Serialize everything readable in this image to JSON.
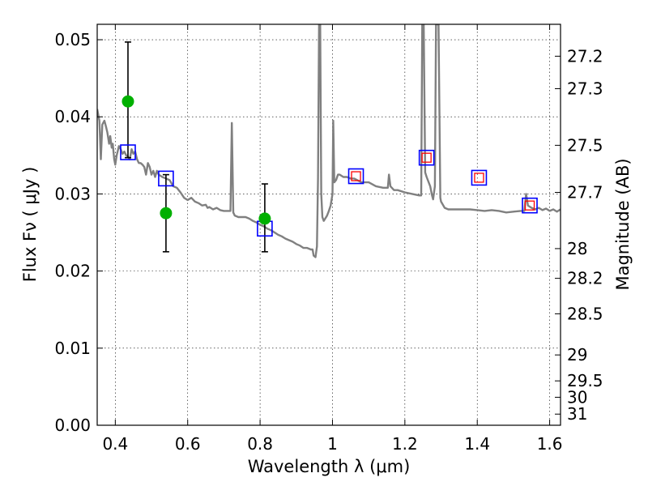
{
  "chart_data": {
    "type": "scatter",
    "xlabel": "Wavelength  λ (μm)",
    "ylabel": "Flux  Fν  ( μJy )",
    "y2label": "Magnitude (AB)",
    "xlim": [
      0.35,
      1.63
    ],
    "ylim": [
      0.0,
      0.052
    ],
    "x_ticks": [
      0.4,
      0.6,
      0.8,
      1.0,
      1.2,
      1.4,
      1.6
    ],
    "x_tick_labels": [
      "0.4",
      "0.6",
      "0.8",
      "1",
      "1.2",
      "1.4",
      "1.6"
    ],
    "y_ticks": [
      0.0,
      0.01,
      0.02,
      0.03,
      0.04,
      0.05
    ],
    "y_tick_labels": [
      "0.00",
      "0.01",
      "0.02",
      "0.03",
      "0.04",
      "0.05"
    ],
    "mag_ticks": [
      "27.2",
      "27.3",
      "27.5",
      "27.7",
      "28",
      "28.2",
      "28.5",
      "29",
      "29.5",
      "30",
      "31"
    ],
    "grid": true,
    "series": [
      {
        "kind": "model-spectrum",
        "color": "#808080",
        "points": [
          [
            0.35,
            0.041
          ],
          [
            0.352,
            0.0405
          ],
          [
            0.356,
            0.0395
          ],
          [
            0.36,
            0.0345
          ],
          [
            0.364,
            0.039
          ],
          [
            0.37,
            0.0395
          ],
          [
            0.374,
            0.0388
          ],
          [
            0.378,
            0.038
          ],
          [
            0.383,
            0.0365
          ],
          [
            0.386,
            0.0375
          ],
          [
            0.39,
            0.036
          ],
          [
            0.393,
            0.0365
          ],
          [
            0.397,
            0.0345
          ],
          [
            0.4,
            0.0338
          ],
          [
            0.404,
            0.035
          ],
          [
            0.41,
            0.0362
          ],
          [
            0.415,
            0.0358
          ],
          [
            0.42,
            0.0352
          ],
          [
            0.425,
            0.0355
          ],
          [
            0.43,
            0.035
          ],
          [
            0.435,
            0.0348
          ],
          [
            0.44,
            0.0345
          ],
          [
            0.445,
            0.0358
          ],
          [
            0.45,
            0.0352
          ],
          [
            0.455,
            0.0355
          ],
          [
            0.46,
            0.0345
          ],
          [
            0.465,
            0.034
          ],
          [
            0.47,
            0.034
          ],
          [
            0.475,
            0.0338
          ],
          [
            0.48,
            0.0335
          ],
          [
            0.485,
            0.0325
          ],
          [
            0.49,
            0.034
          ],
          [
            0.495,
            0.0335
          ],
          [
            0.5,
            0.0325
          ],
          [
            0.505,
            0.033
          ],
          [
            0.51,
            0.0322
          ],
          [
            0.515,
            0.033
          ],
          [
            0.52,
            0.0325
          ],
          [
            0.53,
            0.0322
          ],
          [
            0.54,
            0.032
          ],
          [
            0.55,
            0.0318
          ],
          [
            0.56,
            0.031
          ],
          [
            0.57,
            0.0308
          ],
          [
            0.58,
            0.0302
          ],
          [
            0.59,
            0.0295
          ],
          [
            0.6,
            0.0292
          ],
          [
            0.61,
            0.0295
          ],
          [
            0.62,
            0.029
          ],
          [
            0.63,
            0.0288
          ],
          [
            0.64,
            0.0285
          ],
          [
            0.65,
            0.0286
          ],
          [
            0.655,
            0.0282
          ],
          [
            0.66,
            0.0283
          ],
          [
            0.67,
            0.028
          ],
          [
            0.68,
            0.0282
          ],
          [
            0.69,
            0.0279
          ],
          [
            0.7,
            0.0278
          ],
          [
            0.71,
            0.0278
          ],
          [
            0.718,
            0.0278
          ],
          [
            0.722,
            0.0392
          ],
          [
            0.726,
            0.0276
          ],
          [
            0.73,
            0.0272
          ],
          [
            0.74,
            0.027
          ],
          [
            0.75,
            0.027
          ],
          [
            0.76,
            0.027
          ],
          [
            0.77,
            0.0268
          ],
          [
            0.78,
            0.0265
          ],
          [
            0.79,
            0.0263
          ],
          [
            0.8,
            0.026
          ],
          [
            0.81,
            0.0258
          ],
          [
            0.82,
            0.0255
          ],
          [
            0.83,
            0.0253
          ],
          [
            0.84,
            0.025
          ],
          [
            0.85,
            0.0247
          ],
          [
            0.86,
            0.0245
          ],
          [
            0.87,
            0.0242
          ],
          [
            0.88,
            0.024
          ],
          [
            0.89,
            0.0238
          ],
          [
            0.9,
            0.0235
          ],
          [
            0.91,
            0.0233
          ],
          [
            0.92,
            0.023
          ],
          [
            0.93,
            0.023
          ],
          [
            0.94,
            0.0228
          ],
          [
            0.945,
            0.0228
          ],
          [
            0.948,
            0.022
          ],
          [
            0.953,
            0.0218
          ],
          [
            0.957,
            0.0232
          ],
          [
            0.96,
            0.032
          ],
          [
            0.963,
            0.052
          ],
          [
            0.966,
            0.052
          ],
          [
            0.969,
            0.03
          ],
          [
            0.972,
            0.027
          ],
          [
            0.976,
            0.0265
          ],
          [
            0.98,
            0.0268
          ],
          [
            0.985,
            0.0272
          ],
          [
            0.99,
            0.0278
          ],
          [
            0.995,
            0.0285
          ],
          [
            1.0,
            0.03
          ],
          [
            1.002,
            0.0395
          ],
          [
            1.005,
            0.0315
          ],
          [
            1.01,
            0.0318
          ],
          [
            1.015,
            0.0325
          ],
          [
            1.02,
            0.0325
          ],
          [
            1.03,
            0.0322
          ],
          [
            1.04,
            0.0322
          ],
          [
            1.05,
            0.032
          ],
          [
            1.06,
            0.032
          ],
          [
            1.08,
            0.0315
          ],
          [
            1.1,
            0.0315
          ],
          [
            1.12,
            0.031
          ],
          [
            1.14,
            0.0308
          ],
          [
            1.153,
            0.0308
          ],
          [
            1.156,
            0.0325
          ],
          [
            1.16,
            0.031
          ],
          [
            1.17,
            0.0305
          ],
          [
            1.18,
            0.0305
          ],
          [
            1.2,
            0.0302
          ],
          [
            1.22,
            0.03
          ],
          [
            1.24,
            0.0298
          ],
          [
            1.245,
            0.0298
          ],
          [
            1.248,
            0.052
          ],
          [
            1.252,
            0.052
          ],
          [
            1.256,
            0.0328
          ],
          [
            1.26,
            0.0322
          ],
          [
            1.27,
            0.031
          ],
          [
            1.275,
            0.0298
          ],
          [
            1.278,
            0.0293
          ],
          [
            1.283,
            0.031
          ],
          [
            1.286,
            0.052
          ],
          [
            1.293,
            0.052
          ],
          [
            1.298,
            0.0295
          ],
          [
            1.3,
            0.029
          ],
          [
            1.31,
            0.0282
          ],
          [
            1.32,
            0.028
          ],
          [
            1.34,
            0.028
          ],
          [
            1.36,
            0.028
          ],
          [
            1.38,
            0.028
          ],
          [
            1.4,
            0.0279
          ],
          [
            1.42,
            0.0278
          ],
          [
            1.44,
            0.0279
          ],
          [
            1.46,
            0.0278
          ],
          [
            1.48,
            0.0276
          ],
          [
            1.5,
            0.0277
          ],
          [
            1.52,
            0.0278
          ],
          [
            1.53,
            0.0278
          ],
          [
            1.535,
            0.03
          ],
          [
            1.54,
            0.0285
          ],
          [
            1.55,
            0.0282
          ],
          [
            1.56,
            0.028
          ],
          [
            1.57,
            0.0282
          ],
          [
            1.58,
            0.0279
          ],
          [
            1.59,
            0.0281
          ],
          [
            1.6,
            0.0278
          ],
          [
            1.61,
            0.028
          ],
          [
            1.62,
            0.0277
          ],
          [
            1.63,
            0.028
          ]
        ]
      },
      {
        "kind": "observed-photometry",
        "marker": "filled-circle",
        "color": "#00b000",
        "points": [
          {
            "x": 0.435,
            "y": 0.042,
            "yerr_low": 0.0073,
            "yerr_high": 0.0077
          },
          {
            "x": 0.54,
            "y": 0.0275,
            "yerr_low": 0.005,
            "yerr_high": 0.005
          },
          {
            "x": 0.813,
            "y": 0.0268,
            "yerr_low": 0.0043,
            "yerr_high": 0.0045
          }
        ]
      },
      {
        "kind": "model-photometry",
        "marker": "open-square",
        "color": "#0000ff",
        "inner_color": "#ff0000",
        "points": [
          {
            "x": 0.435,
            "y": 0.0354,
            "inner": false
          },
          {
            "x": 0.54,
            "y": 0.032,
            "inner": false
          },
          {
            "x": 0.813,
            "y": 0.0255,
            "inner": false
          },
          {
            "x": 1.065,
            "y": 0.0323,
            "inner": true
          },
          {
            "x": 1.26,
            "y": 0.0347,
            "inner": true
          },
          {
            "x": 1.405,
            "y": 0.0321,
            "inner": true
          },
          {
            "x": 1.545,
            "y": 0.0285,
            "inner": true
          }
        ]
      }
    ]
  }
}
